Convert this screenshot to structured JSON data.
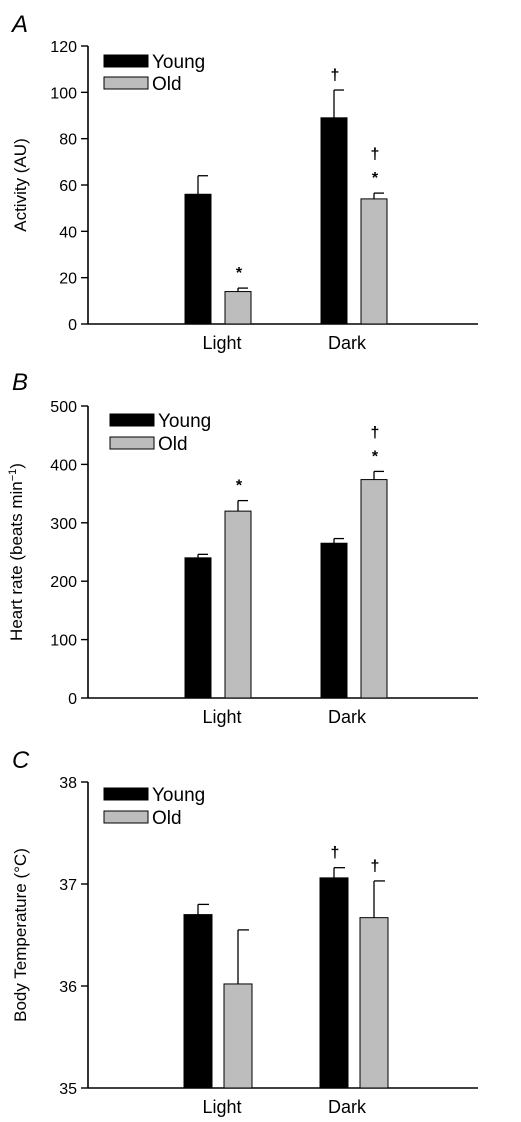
{
  "colors": {
    "young": "#000000",
    "old": "#bdbdbd"
  },
  "chart_data": [
    {
      "type": "bar",
      "panel": "A",
      "categories": [
        "Light",
        "Dark"
      ],
      "ylabel": "Activity (AU)",
      "ylim": [
        0,
        120
      ],
      "yticks": [
        0,
        20,
        40,
        60,
        80,
        100,
        120
      ],
      "legend": "top-left",
      "series": [
        {
          "name": "Young",
          "values": [
            56,
            89
          ],
          "errors": [
            8,
            12
          ],
          "markers": [
            "",
            "†"
          ]
        },
        {
          "name": "Old",
          "values": [
            14,
            54
          ],
          "errors": [
            1.5,
            2.5
          ],
          "markers": [
            "*",
            "*†"
          ]
        }
      ]
    },
    {
      "type": "bar",
      "panel": "B",
      "categories": [
        "Light",
        "Dark"
      ],
      "ylabel": "Heart rate (beats min",
      "ylabel_sup": "−1",
      "ylabel_close": ")",
      "ylim": [
        0,
        500
      ],
      "yticks": [
        0,
        100,
        200,
        300,
        400,
        500
      ],
      "legend": "top-left",
      "series": [
        {
          "name": "Young",
          "values": [
            240,
            265
          ],
          "errors": [
            6,
            8
          ],
          "markers": [
            "",
            ""
          ]
        },
        {
          "name": "Old",
          "values": [
            320,
            374
          ],
          "errors": [
            18,
            14
          ],
          "markers": [
            "*",
            "*†"
          ]
        }
      ]
    },
    {
      "type": "bar",
      "panel": "C",
      "categories": [
        "Light",
        "Dark"
      ],
      "ylabel": "Body Temperature (°C)",
      "ylim": [
        35,
        38
      ],
      "yticks": [
        35,
        36,
        37,
        38
      ],
      "legend": "top-left",
      "series": [
        {
          "name": "Young",
          "values": [
            36.7,
            37.06
          ],
          "errors": [
            0.1,
            0.1
          ],
          "markers": [
            "",
            "†"
          ]
        },
        {
          "name": "Old",
          "values": [
            36.02,
            36.67
          ],
          "errors": [
            0.53,
            0.36
          ],
          "markers": [
            "",
            "†"
          ]
        }
      ]
    }
  ]
}
